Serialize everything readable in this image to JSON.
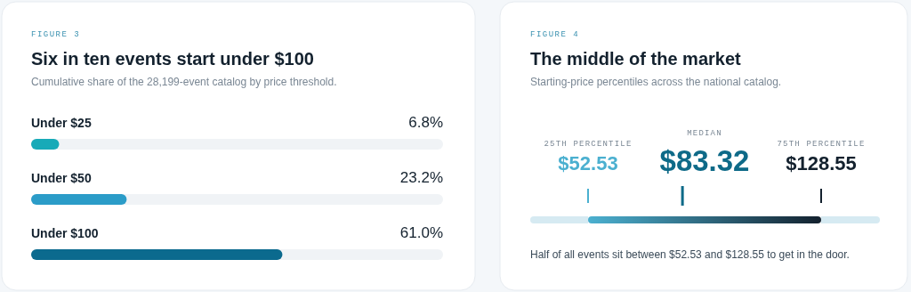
{
  "chart_data": [
    {
      "type": "bar",
      "orientation": "horizontal",
      "title": "Six in ten events start under $100",
      "subtitle": "Cumulative share of the 28,199-event catalog by price threshold.",
      "annotations": [
        "FIGURE 3"
      ],
      "categories": [
        "Under $25",
        "Under $50",
        "Under $100"
      ],
      "values": [
        6.8,
        23.2,
        61.0
      ],
      "value_labels": [
        "6.8%",
        "23.2%",
        "61.0%"
      ],
      "colors": [
        "#17aab8",
        "#2b9cc8",
        "#0b6a8e"
      ],
      "xlim": [
        0,
        100
      ]
    },
    {
      "type": "other",
      "title": "The middle of the market",
      "subtitle": "Starting-price percentiles across the national catalog.",
      "annotations": [
        "FIGURE 4",
        "Half of all events sit between $52.53 and $128.55 to get in the door."
      ],
      "categories": [
        "25TH PERCENTILE",
        "MEDIAN",
        "75TH PERCENTILE"
      ],
      "values": [
        52.53,
        83.32,
        128.55
      ],
      "value_labels": [
        "$52.53",
        "$83.32",
        "$128.55"
      ]
    }
  ]
}
